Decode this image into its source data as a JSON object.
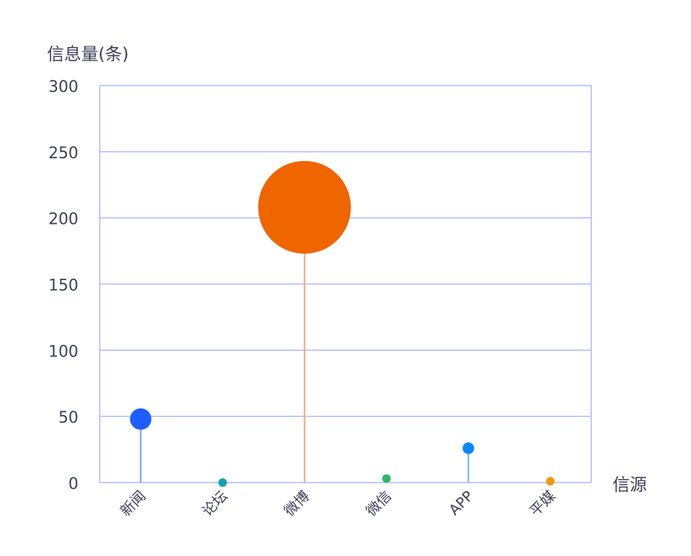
{
  "chart_data": {
    "type": "scatter",
    "ylabel": "信息量(条)",
    "xlabel": "信源",
    "ylim": [
      0,
      300
    ],
    "yticks": [
      "0",
      "50",
      "100",
      "150",
      "200",
      "250",
      "300"
    ],
    "grid": true,
    "categories": [
      "新闻",
      "论坛",
      "微博",
      "微信",
      "APP",
      "平媒"
    ],
    "values": [
      48,
      0,
      208,
      3,
      26,
      1
    ],
    "colors": [
      "#1e5eff",
      "#13a3b0",
      "#ef6500",
      "#2cb867",
      "#0a86ff",
      "#f29a0f"
    ],
    "stem_colors": [
      "#6e98ff",
      "#6cc8d0",
      "#f5a36a",
      "#80d6a4",
      "#5fb0ff",
      "#f6c26b"
    ],
    "axis_color": "#a9b8ff"
  }
}
